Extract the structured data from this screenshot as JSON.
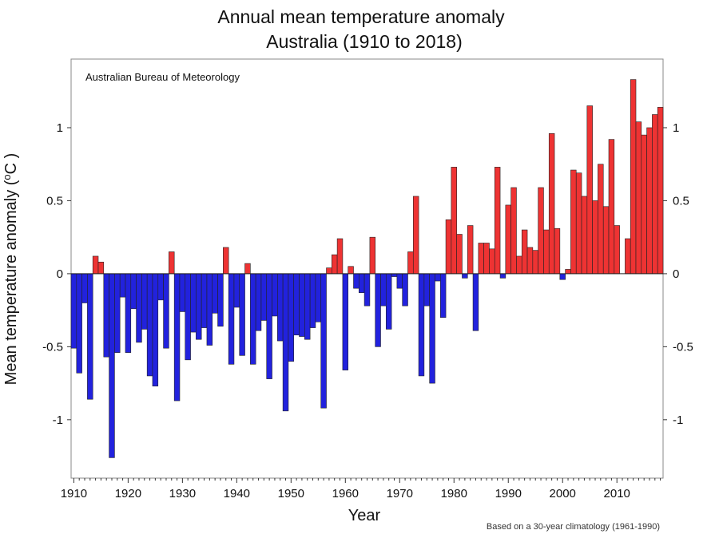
{
  "chart_data": {
    "type": "bar",
    "title": "Annual mean temperature anomaly",
    "subtitle": "Australia (1910 to 2018)",
    "xlabel": "Year",
    "ylabel": "Mean temperature anomaly (",
    "ylabel_unit": "o",
    "ylabel_unit_letter": "C )",
    "annotation": "Australian Bureau of Meteorology",
    "footnote": "Based on a 30-year climatology (1961-1990)",
    "xlim": [
      1909.5,
      2018.5
    ],
    "ylim": [
      -1.4,
      1.47
    ],
    "xticks": [
      "1910",
      "1920",
      "1930",
      "1940",
      "1950",
      "1960",
      "1970",
      "1980",
      "1990",
      "2000",
      "2010"
    ],
    "yticks": [
      {
        "value": -1,
        "label": "-1"
      },
      {
        "value": -0.5,
        "label": "-0.5"
      },
      {
        "value": 0,
        "label": "0"
      },
      {
        "value": 0.5,
        "label": "0.5"
      },
      {
        "value": 1,
        "label": "1"
      }
    ],
    "colors": {
      "positive": "#ee3333",
      "negative": "#2222dd"
    },
    "x_start": 1910,
    "values": [
      -0.51,
      -0.68,
      -0.2,
      -0.86,
      0.12,
      0.08,
      -0.57,
      -1.26,
      -0.54,
      -0.16,
      -0.54,
      -0.24,
      -0.47,
      -0.38,
      -0.7,
      -0.77,
      -0.18,
      -0.51,
      0.15,
      -0.87,
      -0.26,
      -0.59,
      -0.4,
      -0.45,
      -0.37,
      -0.49,
      -0.27,
      -0.36,
      0.18,
      -0.62,
      -0.23,
      -0.56,
      0.07,
      -0.62,
      -0.39,
      -0.32,
      -0.72,
      -0.29,
      -0.46,
      -0.94,
      -0.6,
      -0.42,
      -0.43,
      -0.45,
      -0.37,
      -0.33,
      -0.92,
      0.04,
      0.13,
      0.24,
      -0.66,
      0.05,
      -0.1,
      -0.13,
      -0.22,
      0.25,
      -0.5,
      -0.22,
      -0.38,
      -0.02,
      -0.1,
      -0.22,
      0.15,
      0.53,
      -0.7,
      -0.22,
      -0.75,
      -0.05,
      -0.3,
      0.37,
      0.73,
      0.27,
      -0.03,
      0.33,
      -0.39,
      0.21,
      0.21,
      0.17,
      0.73,
      -0.03,
      0.47,
      0.59,
      0.12,
      0.3,
      0.18,
      0.16,
      0.59,
      0.3,
      0.96,
      0.31,
      -0.04,
      0.03,
      0.71,
      0.69,
      0.53,
      1.15,
      0.5,
      0.75,
      0.46,
      0.92,
      0.33,
      -0.0,
      0.24,
      1.33,
      1.04,
      0.95,
      1.0,
      1.09,
      1.14
    ]
  }
}
